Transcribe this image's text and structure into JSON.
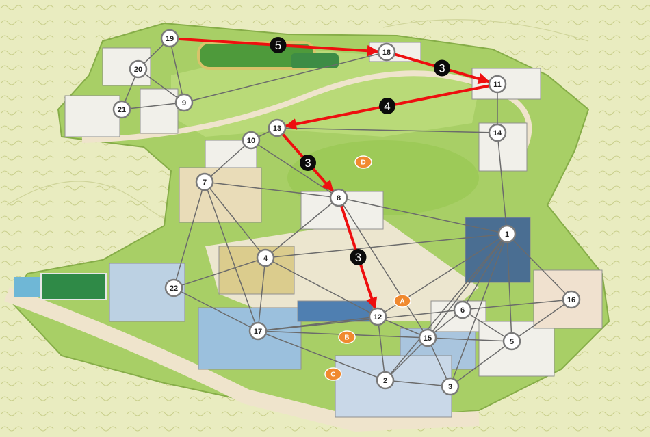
{
  "nodes": [
    {
      "id": "1"
    },
    {
      "id": "2"
    },
    {
      "id": "3"
    },
    {
      "id": "4"
    },
    {
      "id": "5"
    },
    {
      "id": "6"
    },
    {
      "id": "7"
    },
    {
      "id": "8"
    },
    {
      "id": "9"
    },
    {
      "id": "10"
    },
    {
      "id": "11"
    },
    {
      "id": "12"
    },
    {
      "id": "13"
    },
    {
      "id": "14"
    },
    {
      "id": "15"
    },
    {
      "id": "16"
    },
    {
      "id": "17"
    },
    {
      "id": "18"
    },
    {
      "id": "19"
    },
    {
      "id": "20"
    },
    {
      "id": "21"
    },
    {
      "id": "22"
    }
  ],
  "edges": [
    [
      "19",
      "20"
    ],
    [
      "19",
      "9"
    ],
    [
      "19",
      "18"
    ],
    [
      "20",
      "21"
    ],
    [
      "20",
      "9"
    ],
    [
      "21",
      "9"
    ],
    [
      "9",
      "18"
    ],
    [
      "18",
      "11"
    ],
    [
      "11",
      "14"
    ],
    [
      "11",
      "13"
    ],
    [
      "13",
      "14"
    ],
    [
      "13",
      "10"
    ],
    [
      "13",
      "8"
    ],
    [
      "10",
      "8"
    ],
    [
      "10",
      "7"
    ],
    [
      "7",
      "8"
    ],
    [
      "7",
      "4"
    ],
    [
      "7",
      "22"
    ],
    [
      "7",
      "17"
    ],
    [
      "14",
      "1"
    ],
    [
      "8",
      "1"
    ],
    [
      "8",
      "4"
    ],
    [
      "8",
      "12"
    ],
    [
      "8",
      "15"
    ],
    [
      "4",
      "1"
    ],
    [
      "4",
      "12"
    ],
    [
      "4",
      "17"
    ],
    [
      "4",
      "22"
    ],
    [
      "22",
      "17"
    ],
    [
      "17",
      "12"
    ],
    [
      "17",
      "15"
    ],
    [
      "17",
      "2"
    ],
    [
      "17",
      "6"
    ],
    [
      "12",
      "2"
    ],
    [
      "12",
      "15"
    ],
    [
      "12",
      "1"
    ],
    [
      "15",
      "6"
    ],
    [
      "15",
      "5"
    ],
    [
      "15",
      "3"
    ],
    [
      "15",
      "2"
    ],
    [
      "1",
      "6"
    ],
    [
      "1",
      "15"
    ],
    [
      "1",
      "2"
    ],
    [
      "1",
      "16"
    ],
    [
      "1",
      "5"
    ],
    [
      "1",
      "3"
    ],
    [
      "6",
      "5"
    ],
    [
      "6",
      "16"
    ],
    [
      "5",
      "3"
    ],
    [
      "2",
      "3"
    ],
    [
      "16",
      "5"
    ]
  ],
  "route": [
    {
      "from": "19",
      "to": "18",
      "weight": "5"
    },
    {
      "from": "18",
      "to": "11",
      "weight": "3"
    },
    {
      "from": "11",
      "to": "13",
      "weight": "4"
    },
    {
      "from": "13",
      "to": "8",
      "weight": "3"
    },
    {
      "from": "8",
      "to": "12",
      "weight": "3"
    }
  ],
  "zones": [
    {
      "id": "A"
    },
    {
      "id": "B"
    },
    {
      "id": "C"
    },
    {
      "id": "D"
    }
  ],
  "colors": {
    "background": "#e9ecc0",
    "campus_grass": "#a8cf66",
    "campus_plaza": "#ece6cf",
    "route": "#ee0f0f",
    "edge": "#6b6b6b",
    "node_fill": "#ffffff",
    "node_stroke": "#7a7a7a",
    "weight_badge": "#0b0b0b",
    "zone_badge": "#f0892f"
  }
}
